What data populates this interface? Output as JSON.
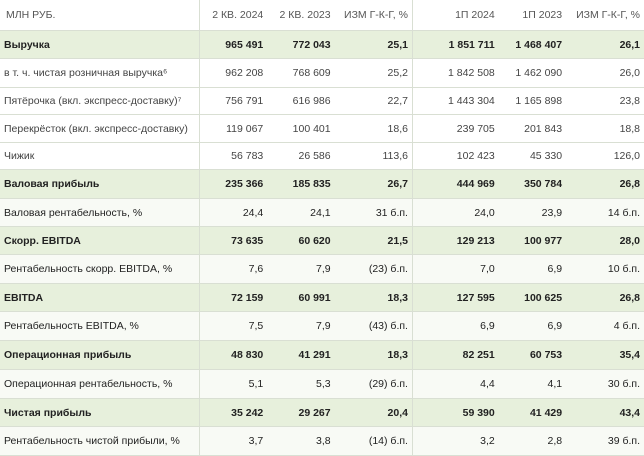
{
  "header": {
    "label": "МЛН РУБ.",
    "cols": [
      "2 КВ. 2024",
      "2 КВ. 2023",
      "ИЗМ Г-К-Г, %",
      "1П 2024",
      "1П 2023",
      "ИЗМ Г-К-Г, %"
    ]
  },
  "rows": [
    {
      "label": "Выручка",
      "v": [
        "965 491",
        "772 043",
        "25,1",
        "1 851 711",
        "1 468 407",
        "26,1"
      ],
      "style": "hl"
    },
    {
      "label": "в т. ч. чистая розничная выручка⁶",
      "v": [
        "962 208",
        "768 609",
        "25,2",
        "1 842 508",
        "1 462 090",
        "26,0"
      ],
      "style": "sub"
    },
    {
      "label": "Пятёрочка (вкл. экспресс-доставку)⁷",
      "v": [
        "756 791",
        "616 986",
        "22,7",
        "1 443 304",
        "1 165 898",
        "23,8"
      ],
      "style": "sub"
    },
    {
      "label": "Перекрёсток (вкл. экспресс-доставку)",
      "v": [
        "119 067",
        "100 401",
        "18,6",
        "239 705",
        "201 843",
        "18,8"
      ],
      "style": "sub"
    },
    {
      "label": "Чижик",
      "v": [
        "56 783",
        "26 586",
        "113,6",
        "102 423",
        "45 330",
        "126,0"
      ],
      "style": "sub"
    },
    {
      "label": "Валовая прибыль",
      "v": [
        "235 366",
        "185 835",
        "26,7",
        "444 969",
        "350 784",
        "26,8"
      ],
      "style": "hl"
    },
    {
      "label": "Валовая рентабельность, %",
      "v": [
        "24,4",
        "24,1",
        "31 б.п.",
        "24,0",
        "23,9",
        "14 б.п."
      ],
      "style": "pl"
    },
    {
      "label": "Скорр. EBITDA",
      "v": [
        "73 635",
        "60 620",
        "21,5",
        "129 213",
        "100 977",
        "28,0"
      ],
      "style": "hl"
    },
    {
      "label": "Рентабельность скорр. EBITDA, %",
      "v": [
        "7,6",
        "7,9",
        "(23) б.п.",
        "7,0",
        "6,9",
        "10 б.п."
      ],
      "style": "pl"
    },
    {
      "label": "EBITDA",
      "v": [
        "72 159",
        "60 991",
        "18,3",
        "127 595",
        "100 625",
        "26,8"
      ],
      "style": "hl"
    },
    {
      "label": "Рентабельность EBITDA, %",
      "v": [
        "7,5",
        "7,9",
        "(43) б.п.",
        "6,9",
        "6,9",
        "4 б.п."
      ],
      "style": "pl"
    },
    {
      "label": "Операционная прибыль",
      "v": [
        "48 830",
        "41 291",
        "18,3",
        "82 251",
        "60 753",
        "35,4"
      ],
      "style": "hl"
    },
    {
      "label": "Операционная рентабельность, %",
      "v": [
        "5,1",
        "5,3",
        "(29) б.п.",
        "4,4",
        "4,1",
        "30 б.п."
      ],
      "style": "pl"
    },
    {
      "label": "Чистая прибыль",
      "v": [
        "35 242",
        "29 267",
        "20,4",
        "59 390",
        "41 429",
        "43,4"
      ],
      "style": "hl"
    },
    {
      "label": "Рентабельность чистой прибыли, %",
      "v": [
        "3,7",
        "3,8",
        "(14) б.п.",
        "3,2",
        "2,8",
        "39 б.п."
      ],
      "style": "pl"
    }
  ],
  "colors": {
    "highlight_row": "#e7f0dc",
    "plain_row": "#f8faf5",
    "border": "#d9dfd3"
  }
}
